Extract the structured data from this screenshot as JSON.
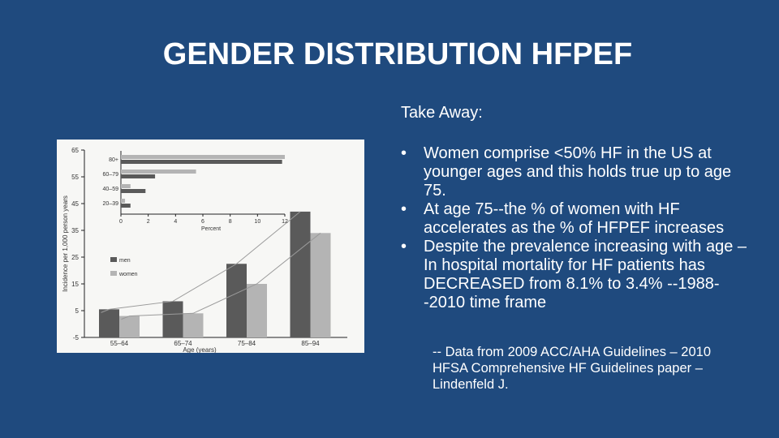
{
  "slide": {
    "title": "GENDER DISTRIBUTION HFPEF",
    "takeaway_label": "Take Away:",
    "bullet_glyph": "•",
    "bullets": [
      "Women comprise <50% HF in the US at younger ages and this holds true up to age 75.",
      "At age 75--the % of women with HF accelerates as the % of HFPEF increases",
      "Despite the prevalence increasing with age – In hospital mortality for HF patients has DECREASED from 8.1% to 3.4% --1988--2010 time frame"
    ],
    "source": "-- Data from 2009 ACC/AHA Guidelines – 2010 HFSA Comprehensive HF Guidelines paper – Lindenfeld J.",
    "colors": {
      "background": "#1f4a7e",
      "text": "#ffffff",
      "men": "#5a5a5a",
      "women": "#b4b4b4",
      "trend": "#9a9a9a"
    }
  },
  "chart_data": [
    {
      "type": "bar",
      "categories": [
        "55–64",
        "65–74",
        "75–84",
        "85–94"
      ],
      "series": [
        {
          "name": "men",
          "values": [
            5.5,
            8.5,
            22.5,
            42
          ]
        },
        {
          "name": "women",
          "values": [
            3,
            4,
            15,
            34
          ]
        }
      ],
      "xlabel": "Age (years)",
      "ylabel": "Incidence per 1,000 person years",
      "ylim": [
        -5,
        65
      ],
      "yticks": [
        -5,
        5,
        15,
        25,
        35,
        45,
        55,
        65
      ],
      "legend_position": "left-middle",
      "trendlines": true,
      "grid": false
    },
    {
      "type": "bar",
      "orientation": "horizontal",
      "categories": [
        "80+",
        "60–79",
        "40–59",
        "20–39"
      ],
      "series": [
        {
          "name": "men",
          "values": [
            11.8,
            2.5,
            1.8,
            0.7
          ]
        },
        {
          "name": "women",
          "values": [
            12,
            5.5,
            0.7,
            0.3
          ]
        }
      ],
      "xlabel": "Percent",
      "xlim": [
        0,
        12
      ],
      "xticks": [
        0,
        2,
        4,
        6,
        8,
        10,
        12
      ],
      "grid": false
    }
  ]
}
